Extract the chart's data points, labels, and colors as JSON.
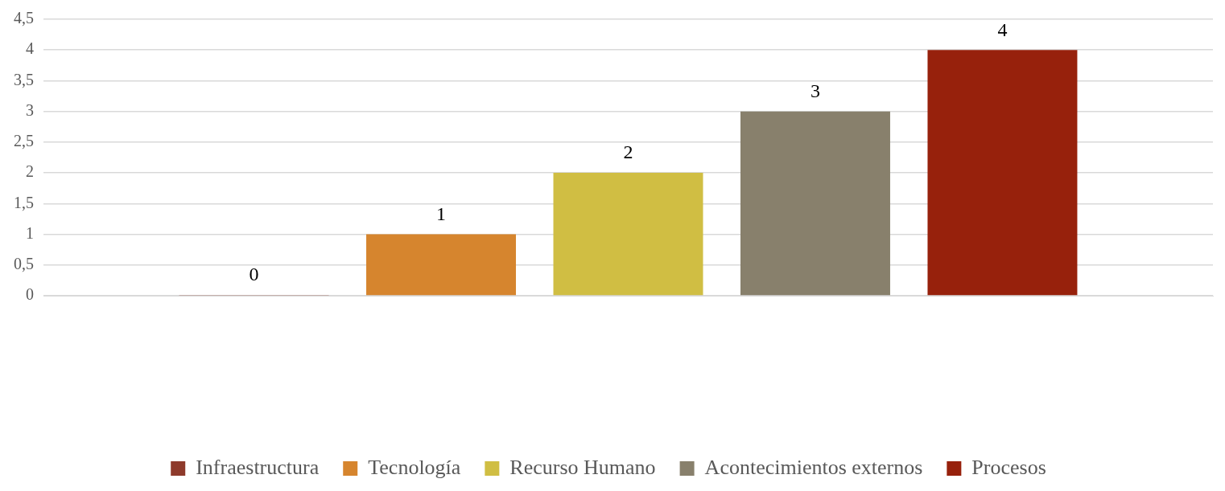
{
  "chart_data": {
    "type": "bar",
    "categories": [
      null
    ],
    "series": [
      {
        "name": "Infraestructura",
        "color": "#8e3a2b",
        "values": [
          0
        ]
      },
      {
        "name": "Tecnología",
        "color": "#d6852e",
        "values": [
          1
        ]
      },
      {
        "name": "Recurso Humano",
        "color": "#d0be43",
        "values": [
          2
        ]
      },
      {
        "name": "Acontecimientos externos",
        "color": "#88806c",
        "values": [
          3
        ]
      },
      {
        "name": "Procesos",
        "color": "#97210c",
        "values": [
          4
        ]
      }
    ],
    "ylim": [
      0,
      4.5
    ],
    "yticks": [
      0,
      {
        "value": 0.5,
        "label": "0,5"
      },
      1,
      {
        "value": 1.5,
        "label": "1,5"
      },
      2,
      {
        "value": 2.5,
        "label": "2,5"
      },
      3,
      {
        "value": 3.5,
        "label": "3,5"
      },
      4,
      {
        "value": 4.5,
        "label": "4,5"
      }
    ],
    "grid": "y",
    "legend": "bottom",
    "data_labels": true
  }
}
